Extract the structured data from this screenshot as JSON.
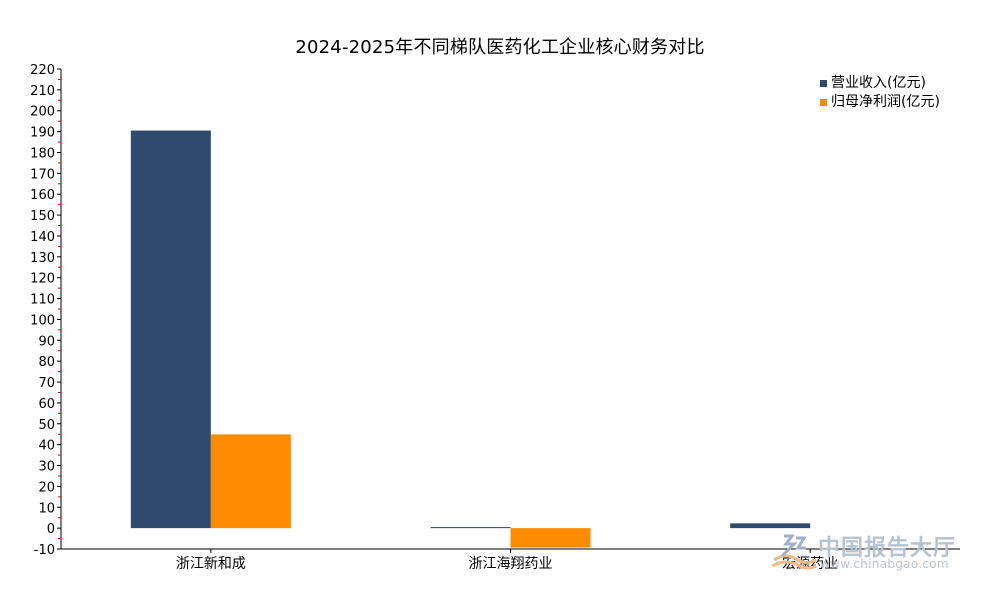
{
  "chart_data": {
    "type": "bar",
    "title": "2024-2025年不同梯队医药化工企业核心财务对比",
    "categories": [
      "浙江新和成",
      "浙江海翔药业",
      "宏源药业"
    ],
    "series": [
      {
        "name": "营业收入(亿元)",
        "color": "#2e4a6e",
        "values": [
          190.5,
          0.5,
          2.3
        ]
      },
      {
        "name": "归母净利润(亿元)",
        "color": "#ff8c00",
        "values": [
          44.9,
          -9.3,
          null
        ]
      }
    ],
    "xlabel": "",
    "ylabel": "",
    "ylim": [
      -10,
      220
    ],
    "yticks": [
      -10,
      0,
      10,
      20,
      30,
      40,
      50,
      60,
      70,
      80,
      90,
      100,
      110,
      120,
      130,
      140,
      150,
      160,
      170,
      180,
      190,
      200,
      210,
      220
    ],
    "grid": false,
    "legend_position": "top-right"
  },
  "watermark": {
    "name": "中国报告大厅",
    "url": "www.chinabgao.com",
    "icon": "logo-icon"
  }
}
